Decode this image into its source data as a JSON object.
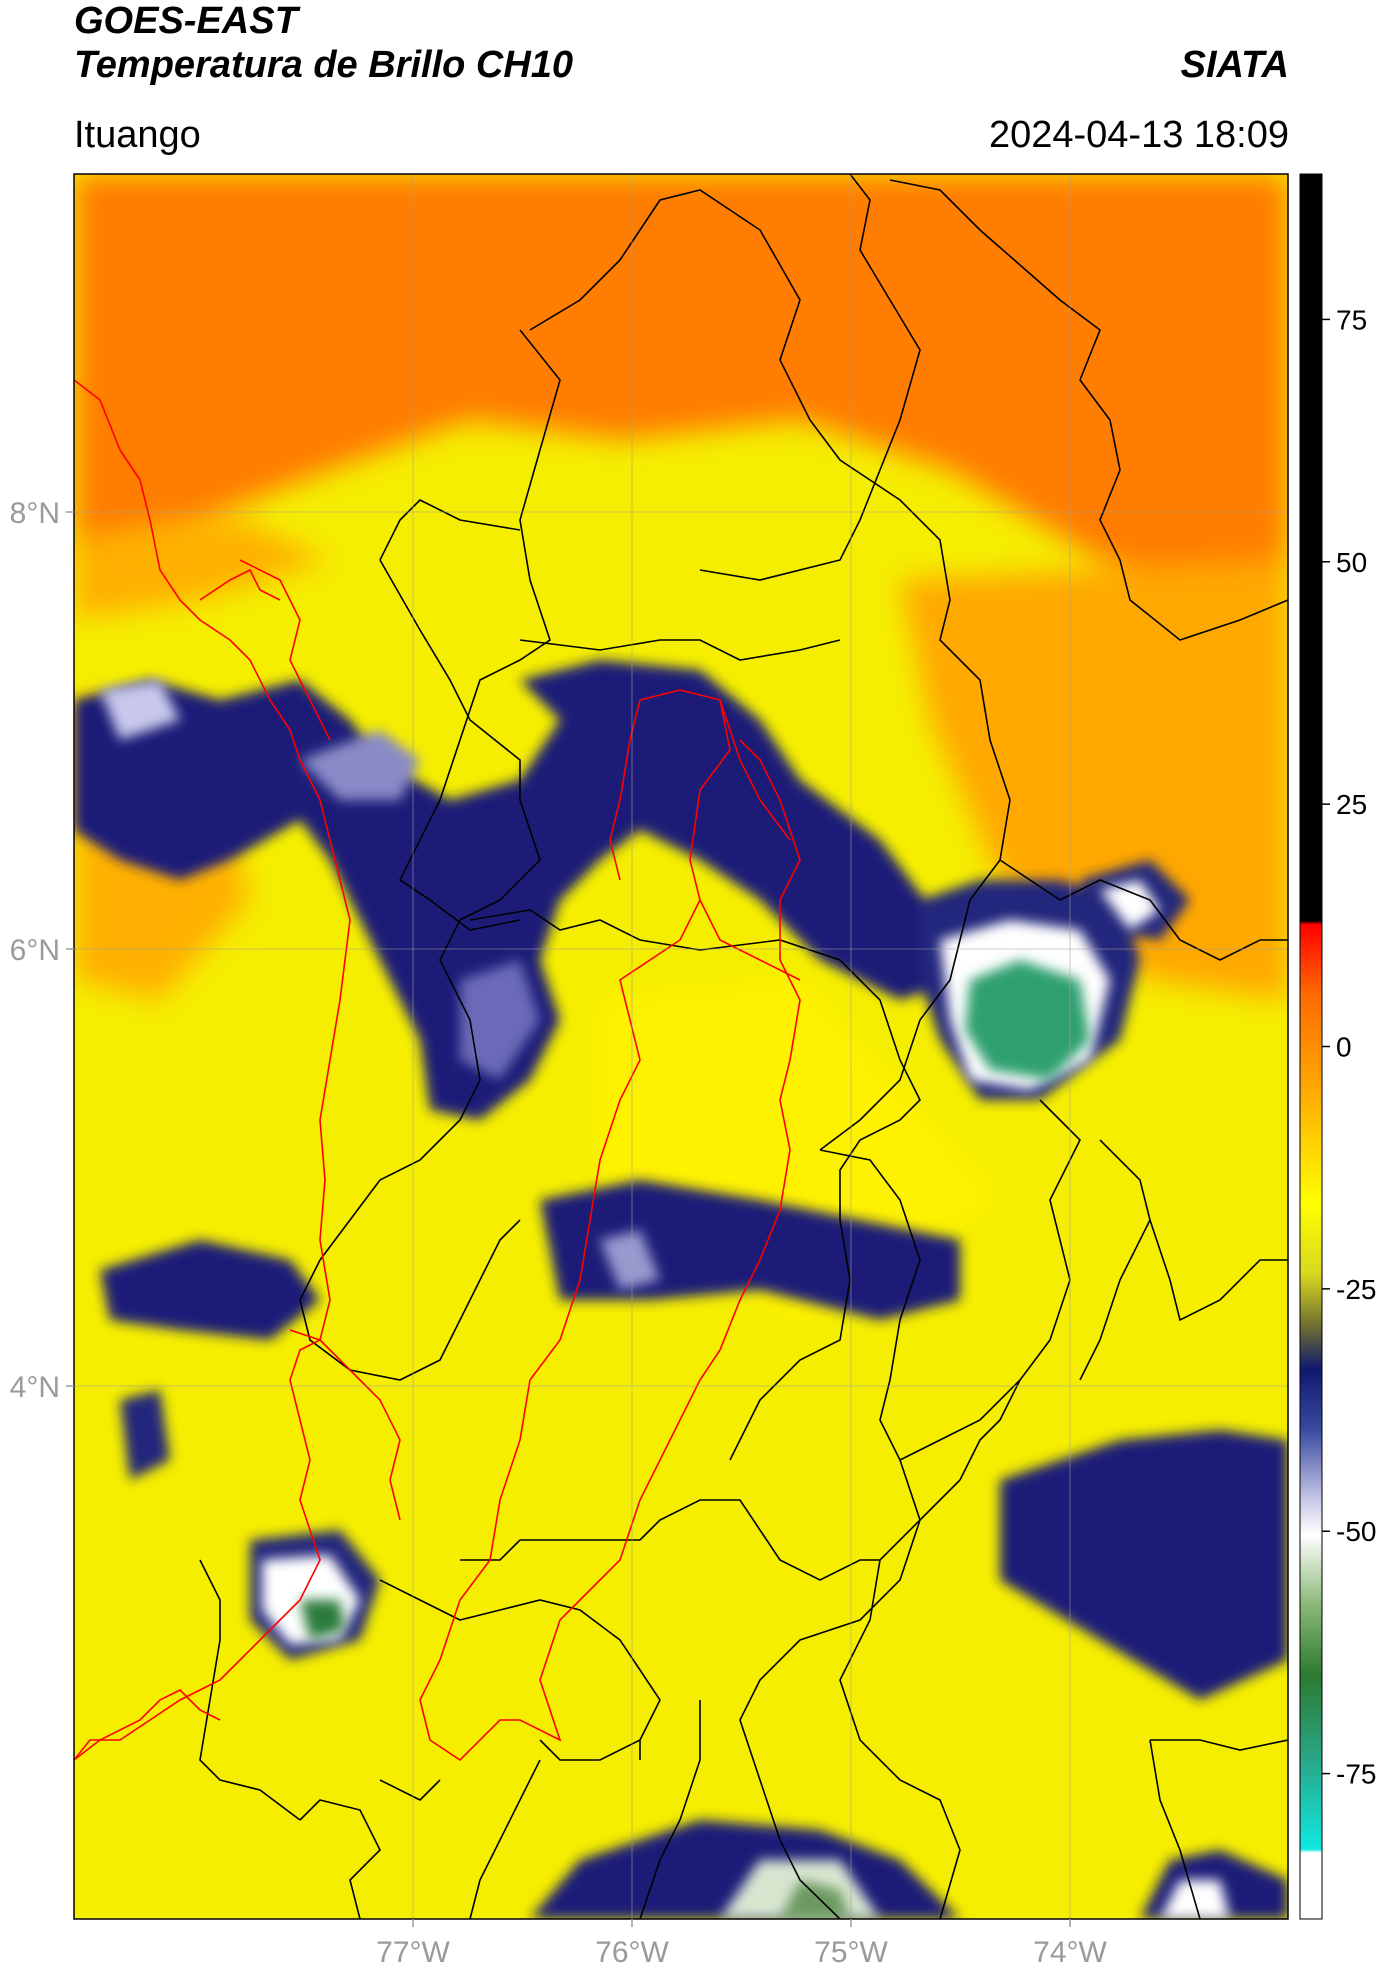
{
  "header": {
    "satellite": "GOES-EAST",
    "product": "Temperatura de Brillo CH10",
    "agency": "SIATA",
    "region": "Ituango",
    "datetime": "2024-04-13 18:09"
  },
  "map": {
    "lon_labels": [
      "77°W",
      "76°W",
      "75°W",
      "74°W"
    ],
    "lat_labels": [
      "8°N",
      "6°N",
      "4°N"
    ],
    "lon_range": [
      -78.55,
      -73.05
    ],
    "lat_range": [
      1.95,
      9.55
    ],
    "gridlines": true,
    "colors": {
      "warm": "#ff7a00",
      "mid": "#f5f500",
      "cold": "#141870",
      "coldest": "#ffffff",
      "deep_cold": "#2c8a4a",
      "boundary_country": "#000000",
      "boundary_region": "#ff0000"
    }
  },
  "colorbar": {
    "ticks": [
      "75",
      "50",
      "25",
      "0",
      "-25",
      "-50",
      "-75"
    ],
    "tick_values": [
      75,
      50,
      25,
      0,
      -25,
      -50,
      -75
    ],
    "range": [
      -90,
      90
    ]
  }
}
